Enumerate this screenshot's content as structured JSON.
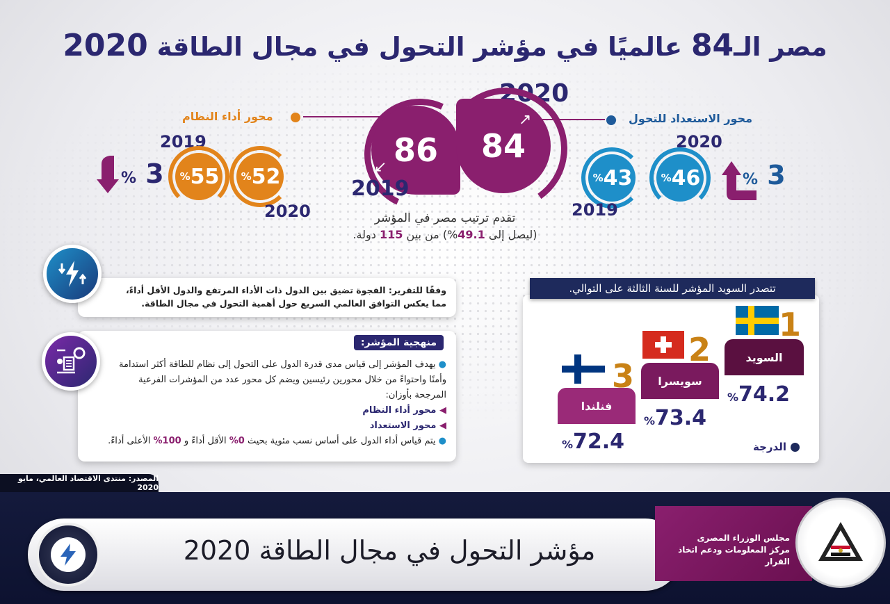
{
  "title": {
    "prefix": "مصر الـ",
    "rank": "84",
    "rest": "عالميًا في مؤشر التحول في مجال الطاقة",
    "year": "2020"
  },
  "central": {
    "rank_2020": "84",
    "rank_2019": "86",
    "year_2020": "2020",
    "year_2019": "2019",
    "note_line1": "تقدم ترتيب مصر في المؤشر",
    "note_line2_prefix": "(ليصل إلى",
    "note_line2_value": "49.1",
    "note_line2_pct": "%)",
    "note_line2_mid": "من بين",
    "note_line2_count": "115",
    "note_line2_suffix": "دولة."
  },
  "system_axis": {
    "label": "محور أداء النظام",
    "value_2020": "52",
    "value_2019": "55",
    "year_2019": "2019",
    "year_2020": "2020",
    "change": "3",
    "pct": "%",
    "direction": "down"
  },
  "readiness_axis": {
    "label": "محور الاستعداد للتحول",
    "value_2020": "46",
    "value_2019": "43",
    "year_2019": "2019",
    "year_2020": "2020",
    "change": "3",
    "pct": "%",
    "direction": "up"
  },
  "report_card": {
    "text": "وفقًا للتقرير: الفجوة تضيق بين الدول ذات الأداء المرتفع والدول الأقل أداءً، مما يعكس التوافق العالمي السريع حول أهمية التحول في مجال الطاقة."
  },
  "methodology": {
    "title": "منهجية المؤشر:",
    "bullet1": "يهدف المؤشر إلى قياس مدى قدرة الدول على التحول إلى نظام للطاقة أكثر استدامة وأمنًا واحتواءً من خلال محورين رئيسين ويضم كل محور عدد من المؤشرات الفرعية المرجحة بأوزان:",
    "sub1": "محور أداء النظام",
    "sub2": "محور الاستعداد",
    "bullet2_a": "يتم قياس أداء الدول على أساس نسب مئوية بحيث",
    "bullet2_b": "0%",
    "bullet2_c": "الأقل أداءً و",
    "bullet2_d": "100%",
    "bullet2_e": "الأعلى أداءً."
  },
  "ranking": {
    "header": "تتصدر السويد المؤشر للسنة الثالثة على التوالي.",
    "score_legend": "الدرجة",
    "countries": [
      {
        "rank": "1",
        "name": "السويد",
        "score": "74.2",
        "pct": "%"
      },
      {
        "rank": "2",
        "name": "سويسرا",
        "score": "73.4",
        "pct": "%"
      },
      {
        "rank": "3",
        "name": "فنلندا",
        "score": "72.4",
        "pct": "%"
      }
    ]
  },
  "source": "المصدر: منتدى الاقتصاد العالمي، مايو 2020",
  "footer": {
    "title": "مؤشر التحول في مجال الطاقة  2020",
    "org_line1": "مجلس الوزراء المصرى",
    "org_line2": "مركز المعلومات ودعم اتخاذ القرار"
  },
  "colors": {
    "navy": "#2b2770",
    "purple": "#8a1f6e",
    "orange": "#e2841b",
    "blue": "#1e8fc9",
    "gold": "#c98216"
  }
}
